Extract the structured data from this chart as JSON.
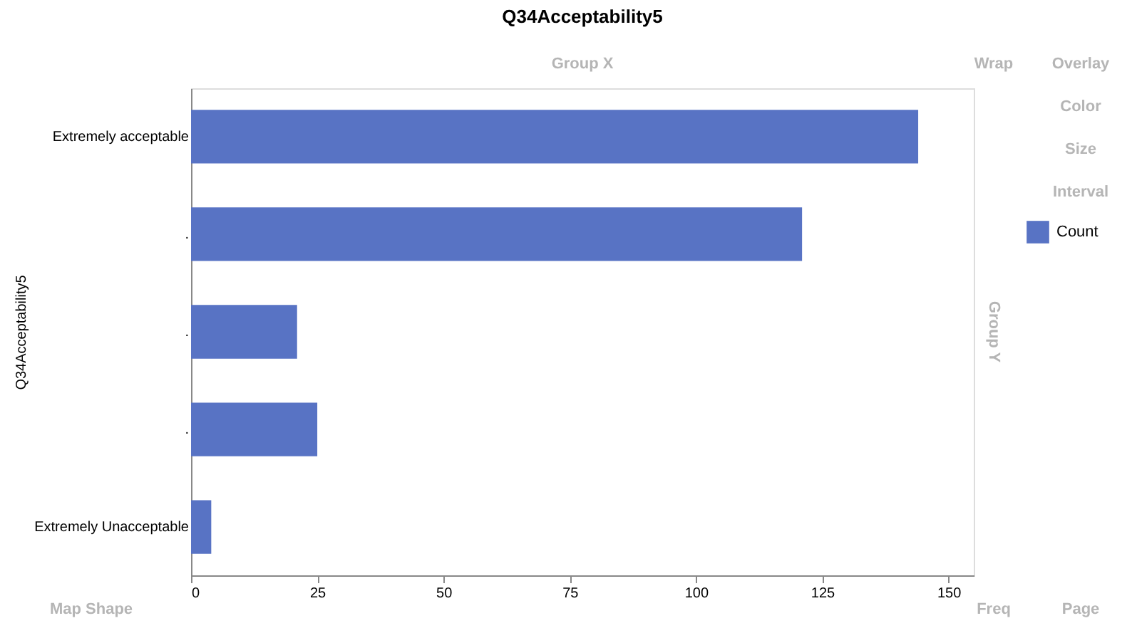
{
  "chart_data": {
    "type": "bar",
    "orientation": "horizontal",
    "title": "Q34Acceptability5",
    "ylabel": "Q34Acceptability5",
    "categories": [
      "Extremely acceptable",
      ".",
      ".",
      ".",
      "Extremely Unacceptable"
    ],
    "series": [
      {
        "name": "Count",
        "color": "#5873c4",
        "values": [
          144,
          121,
          21,
          25,
          4
        ]
      }
    ],
    "xlim": [
      0,
      155
    ],
    "xticks": [
      0,
      25,
      50,
      75,
      100,
      125,
      150
    ],
    "grid": false,
    "legend": "right",
    "annotations": [
      "Group X",
      "Wrap",
      "Overlay",
      "Color",
      "Size",
      "Interval",
      "Group Y",
      "Map Shape",
      "Freq",
      "Page"
    ]
  }
}
